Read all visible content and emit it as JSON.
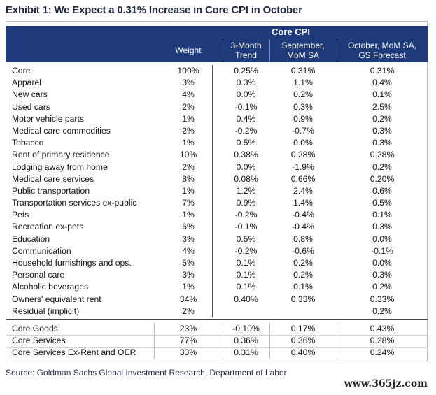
{
  "title": "Exhibit 1: We Expect a 0.31% Increase in Core CPI in October",
  "header": {
    "group_label": "Core CPI",
    "columns": [
      {
        "line1": "Weight",
        "line2": ""
      },
      {
        "line1": "3-Month",
        "line2": "Trend"
      },
      {
        "line1": "September,",
        "line2": "MoM SA"
      },
      {
        "line1": "October, MoM SA,",
        "line2": "GS Forecast"
      }
    ]
  },
  "rows": [
    {
      "name": "Core",
      "weight": "100%",
      "trend": "0.25%",
      "sep": "0.31%",
      "oct": "0.31%"
    },
    {
      "name": "Apparel",
      "weight": "3%",
      "trend": "0.3%",
      "sep": "1.1%",
      "oct": "0.4%"
    },
    {
      "name": "New cars",
      "weight": "4%",
      "trend": "0.0%",
      "sep": "0.2%",
      "oct": "0.1%"
    },
    {
      "name": "Used cars",
      "weight": "2%",
      "trend": "-0.1%",
      "sep": "0.3%",
      "oct": "2.5%"
    },
    {
      "name": "Motor vehicle parts",
      "weight": "1%",
      "trend": "0.4%",
      "sep": "0.9%",
      "oct": "0.2%"
    },
    {
      "name": "Medical care commodities",
      "weight": "2%",
      "trend": "-0.2%",
      "sep": "-0.7%",
      "oct": "0.3%"
    },
    {
      "name": "Tobacco",
      "weight": "1%",
      "trend": "0.5%",
      "sep": "0.0%",
      "oct": "0.3%"
    },
    {
      "name": "Rent of primary residence",
      "weight": "10%",
      "trend": "0.38%",
      "sep": "0.28%",
      "oct": "0.28%"
    },
    {
      "name": "Lodging away from home",
      "weight": "2%",
      "trend": "0.0%",
      "sep": "-1.9%",
      "oct": "0.2%"
    },
    {
      "name": "Medical care services",
      "weight": "8%",
      "trend": "0.08%",
      "sep": "0.66%",
      "oct": "0.20%"
    },
    {
      "name": "Public transportation",
      "weight": "1%",
      "trend": "1.2%",
      "sep": "2.4%",
      "oct": "0.6%"
    },
    {
      "name": "Transportation services ex-public",
      "weight": "7%",
      "trend": "0.9%",
      "sep": "1.4%",
      "oct": "0.5%"
    },
    {
      "name": "Pets",
      "weight": "1%",
      "trend": "-0.2%",
      "sep": "-0.4%",
      "oct": "0.1%"
    },
    {
      "name": "Recreation ex-pets",
      "weight": "6%",
      "trend": "-0.1%",
      "sep": "-0.4%",
      "oct": "0.3%"
    },
    {
      "name": "Education",
      "weight": "3%",
      "trend": "0.5%",
      "sep": "0.8%",
      "oct": "0.0%"
    },
    {
      "name": "Communication",
      "weight": "4%",
      "trend": "-0.2%",
      "sep": "-0.6%",
      "oct": "-0.1%"
    },
    {
      "name": "Household furnishings and ops.",
      "weight": "5%",
      "trend": "0.1%",
      "sep": "0.2%",
      "oct": "0.0%"
    },
    {
      "name": "Personal care",
      "weight": "3%",
      "trend": "0.1%",
      "sep": "0.2%",
      "oct": "0.3%"
    },
    {
      "name": "Alcoholic beverages",
      "weight": "1%",
      "trend": "0.1%",
      "sep": "0.1%",
      "oct": "0.2%"
    },
    {
      "name": "Owners' equivalent rent",
      "weight": "34%",
      "trend": "0.40%",
      "sep": "0.33%",
      "oct": "0.33%"
    },
    {
      "name": "Residual (implicit)",
      "weight": "2%",
      "trend": "",
      "sep": "",
      "oct": "0.2%"
    }
  ],
  "summary": [
    {
      "name": "Core Goods",
      "weight": "23%",
      "trend": "-0.10%",
      "sep": "0.17%",
      "oct": "0.43%"
    },
    {
      "name": "Core Services",
      "weight": "77%",
      "trend": "0.36%",
      "sep": "0.36%",
      "oct": "0.28%"
    },
    {
      "name": "Core Services Ex-Rent and OER",
      "weight": "33%",
      "trend": "0.31%",
      "sep": "0.40%",
      "oct": "0.24%"
    }
  ],
  "source": "Source: Goldman Sachs Global Investment Research, Department of Labor",
  "watermark": "www.365jz.com"
}
